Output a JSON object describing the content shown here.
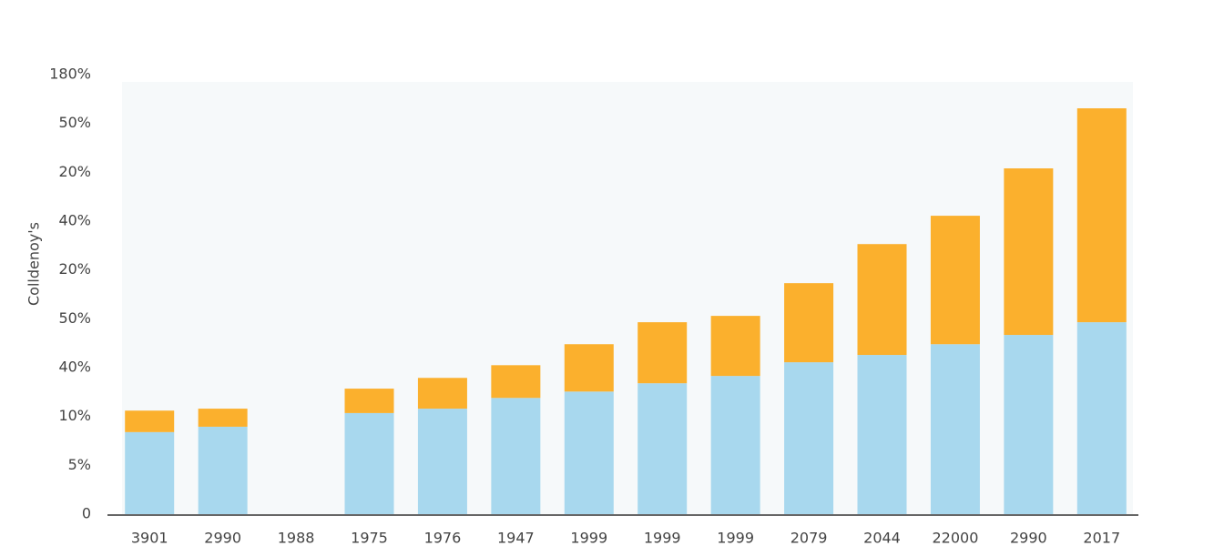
{
  "chart_data": {
    "type": "bar",
    "stacked": true,
    "y_axis_label": "Colldenoy's",
    "categories": [
      "3901",
      "2990",
      "1988",
      "1975",
      "1976",
      "1947",
      "1999",
      "1999",
      "1999",
      "2079",
      "2044",
      "22000",
      "2990",
      "2017"
    ],
    "series": [
      {
        "color": "#a8d8ee",
        "values": [
          1.68,
          1.79,
          null,
          2.07,
          2.16,
          2.38,
          2.51,
          2.68,
          2.83,
          3.11,
          3.26,
          3.48,
          3.67,
          3.93
        ]
      },
      {
        "color": "#fbb02d",
        "values": [
          0.44,
          0.37,
          null,
          0.5,
          0.63,
          0.67,
          0.97,
          1.25,
          1.23,
          1.62,
          2.27,
          2.63,
          3.41,
          4.38
        ]
      }
    ],
    "ylim": [
      0,
      9
    ],
    "yticks": [
      {
        "value": 0,
        "label": "0"
      },
      {
        "value": 1,
        "label": "5%"
      },
      {
        "value": 2,
        "label": "10%"
      },
      {
        "value": 3,
        "label": "40%"
      },
      {
        "value": 4,
        "label": "50%"
      },
      {
        "value": 5,
        "label": "20%"
      },
      {
        "value": 6,
        "label": "40%"
      },
      {
        "value": 7,
        "label": "20%"
      },
      {
        "value": 8,
        "label": "50%"
      },
      {
        "value": 9,
        "label": "180%"
      }
    ],
    "grid": false
  }
}
